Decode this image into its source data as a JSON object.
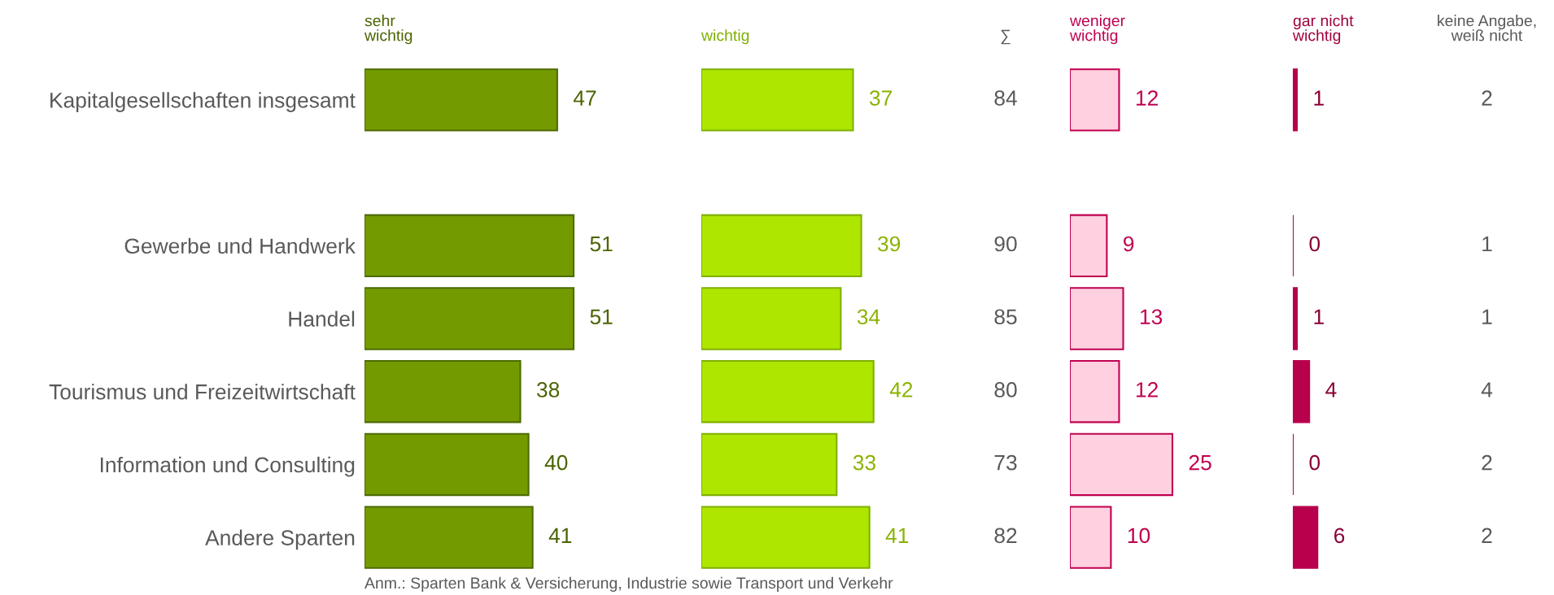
{
  "chart_data": [
    {
      "type": "bar",
      "orientation": "horizontal",
      "title": "sehr\nwichtig",
      "categories": [
        "Kapitalgesellschaften insgesamt",
        null,
        "Gewerbe und Handwerk",
        "Handel",
        "Tourismus und Freizeitwirtschaft",
        "Information und Consulting",
        "Andere Sparten"
      ],
      "values": [
        47,
        null,
        51,
        51,
        38,
        40,
        41
      ],
      "color": "#739b00",
      "data_labels": true,
      "tick_labels": "y",
      "annotations": [
        "Anm.: Sparten Bank & Versicherung, Industrie sowie Transport und Verkehr"
      ]
    },
    {
      "type": "bar",
      "orientation": "horizontal",
      "title": "wichtig",
      "categories": [
        null,
        null,
        null,
        null,
        null,
        null,
        null
      ],
      "values": [
        37,
        null,
        39,
        34,
        42,
        33,
        41
      ],
      "color": "#aee600",
      "data_labels": true,
      "tick_labels": false
    },
    {
      "type": "other",
      "title": "∑",
      "categories": [
        null,
        null,
        null,
        null,
        null,
        null,
        null
      ],
      "values": [
        84,
        null,
        90,
        85,
        80,
        73,
        82
      ],
      "data_labels": true
    },
    {
      "type": "bar",
      "orientation": "horizontal",
      "title": "weniger\nwichtig",
      "categories": [
        null,
        null,
        null,
        null,
        null,
        null,
        null
      ],
      "values": [
        12,
        null,
        9,
        13,
        12,
        25,
        10
      ],
      "color": "#ffd0e0",
      "data_labels": true,
      "tick_labels": false
    },
    {
      "type": "bar",
      "orientation": "horizontal",
      "title": "gar nicht\nwichtig",
      "categories": [
        null,
        null,
        null,
        null,
        null,
        null,
        null
      ],
      "values": [
        1,
        null,
        0,
        1,
        4,
        0,
        6
      ],
      "color": "#b8004c",
      "data_labels": true,
      "tick_labels": false
    },
    {
      "type": "other",
      "title": "keine Angabe,\nweiß nicht",
      "categories": [
        null,
        null,
        null,
        null,
        null,
        null,
        null
      ],
      "values": [
        2,
        null,
        1,
        1,
        4,
        2,
        2
      ],
      "data_labels": true
    }
  ]
}
